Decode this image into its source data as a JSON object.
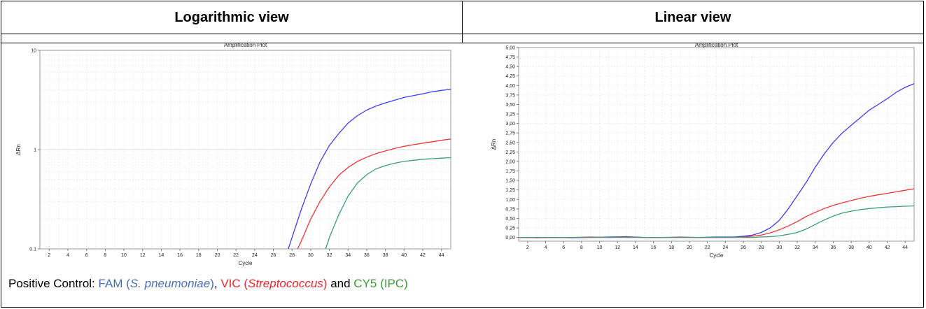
{
  "headers": {
    "left": "Logarithmic view",
    "right": "Linear view"
  },
  "caption": {
    "prefix": "Positive Control: ",
    "fam_label": "FAM (",
    "fam_organism": "S. pneumoniae",
    "fam_close": ")",
    "sep1": ", ",
    "vic_label": "VIC (",
    "vic_organism": "Streptococcus",
    "vic_close": ")",
    "sep2": " and ",
    "cy5_label": "CY5 (IPC)"
  },
  "colors": {
    "fam": "#3e3ef0",
    "vic": "#ee3434",
    "cy5": "#3c9c7a",
    "grid": "#dddddd"
  },
  "chart_data": [
    {
      "type": "line",
      "title": "Amplification Plot",
      "xlabel": "Cycle",
      "ylabel": "ΔRn",
      "yscale": "log",
      "xlim": [
        1,
        45
      ],
      "ylim": [
        0.1,
        10
      ],
      "x_ticks": [
        2,
        4,
        6,
        8,
        10,
        12,
        14,
        16,
        18,
        20,
        22,
        24,
        26,
        28,
        30,
        32,
        34,
        36,
        38,
        40,
        42,
        44
      ],
      "y_ticks": [
        0.1,
        1,
        10
      ],
      "y_tick_labels": [
        "0.1",
        "1",
        "10"
      ],
      "grid": true,
      "series": [
        {
          "color": "fam",
          "x": [
            27.6,
            28,
            29,
            30,
            31,
            32,
            33,
            34,
            35,
            36,
            37,
            38,
            39,
            40,
            41,
            42,
            43,
            44,
            45
          ],
          "y": [
            0.1,
            0.13,
            0.25,
            0.45,
            0.75,
            1.1,
            1.45,
            1.85,
            2.2,
            2.5,
            2.75,
            2.95,
            3.15,
            3.35,
            3.5,
            3.65,
            3.82,
            3.95,
            4.05
          ]
        },
        {
          "color": "vic",
          "x": [
            28.6,
            29,
            30,
            31,
            32,
            33,
            34,
            35,
            36,
            37,
            38,
            39,
            40,
            41,
            42,
            43,
            44,
            45
          ],
          "y": [
            0.1,
            0.12,
            0.2,
            0.3,
            0.42,
            0.55,
            0.66,
            0.76,
            0.84,
            0.91,
            0.97,
            1.03,
            1.08,
            1.12,
            1.16,
            1.2,
            1.24,
            1.28
          ]
        },
        {
          "color": "cy5",
          "x": [
            31.6,
            32,
            33,
            34,
            35,
            36,
            37,
            38,
            39,
            40,
            41,
            42,
            43,
            44,
            45
          ],
          "y": [
            0.1,
            0.13,
            0.22,
            0.34,
            0.46,
            0.56,
            0.64,
            0.69,
            0.73,
            0.76,
            0.78,
            0.8,
            0.81,
            0.82,
            0.83
          ]
        }
      ]
    },
    {
      "type": "line",
      "title": "Amplification Plot",
      "xlabel": "Cycle",
      "ylabel": "ΔRn",
      "yscale": "linear",
      "xlim": [
        1,
        45
      ],
      "ylim": [
        -0.1,
        5.0
      ],
      "x_ticks": [
        2,
        4,
        6,
        8,
        10,
        12,
        14,
        16,
        18,
        20,
        22,
        24,
        26,
        28,
        30,
        32,
        34,
        36,
        38,
        40,
        42,
        44
      ],
      "y_ticks": [
        0,
        0.25,
        0.5,
        0.75,
        1,
        1.25,
        1.5,
        1.75,
        2,
        2.25,
        2.5,
        2.75,
        3,
        3.25,
        3.5,
        3.75,
        4,
        4.25,
        4.5,
        4.75,
        5
      ],
      "y_tick_labels": [
        "0,00",
        "0,25",
        "0,50",
        "0,75",
        "1,00",
        "1,25",
        "1,50",
        "1,75",
        "2,00",
        "2,25",
        "2,50",
        "2,75",
        "3,00",
        "3,25",
        "3,50",
        "3,75",
        "4,00",
        "4,25",
        "4,50",
        "4,75",
        "5,00"
      ],
      "grid": true,
      "series": [
        {
          "color": "fam",
          "x": [
            1,
            3,
            5,
            7,
            9,
            11,
            13,
            15,
            17,
            19,
            21,
            23,
            25,
            26,
            27,
            28,
            29,
            30,
            31,
            32,
            33,
            34,
            35,
            36,
            37,
            38,
            39,
            40,
            41,
            42,
            43,
            44,
            45
          ],
          "y": [
            0.0,
            0.0,
            0.0,
            -0.01,
            0.0,
            0.01,
            0.02,
            0.0,
            0.0,
            0.0,
            0.0,
            0.01,
            0.01,
            0.03,
            0.06,
            0.13,
            0.25,
            0.45,
            0.75,
            1.1,
            1.45,
            1.85,
            2.2,
            2.5,
            2.75,
            2.95,
            3.15,
            3.35,
            3.5,
            3.65,
            3.82,
            3.95,
            4.05
          ]
        },
        {
          "color": "vic",
          "x": [
            1,
            3,
            5,
            7,
            9,
            11,
            13,
            15,
            17,
            19,
            21,
            23,
            25,
            26,
            27,
            28,
            29,
            30,
            31,
            32,
            33,
            34,
            35,
            36,
            37,
            38,
            39,
            40,
            41,
            42,
            43,
            44,
            45
          ],
          "y": [
            0.0,
            -0.01,
            0.0,
            0.0,
            0.01,
            0.0,
            0.01,
            0.0,
            0.0,
            0.01,
            0.0,
            0.0,
            0.0,
            0.01,
            0.03,
            0.06,
            0.12,
            0.2,
            0.3,
            0.42,
            0.55,
            0.66,
            0.76,
            0.84,
            0.91,
            0.97,
            1.03,
            1.08,
            1.12,
            1.16,
            1.2,
            1.24,
            1.28
          ]
        },
        {
          "color": "cy5",
          "x": [
            1,
            3,
            5,
            7,
            9,
            11,
            13,
            15,
            17,
            19,
            21,
            23,
            25,
            27,
            28,
            29,
            30,
            31,
            32,
            33,
            34,
            35,
            36,
            37,
            38,
            39,
            40,
            41,
            42,
            43,
            44,
            45
          ],
          "y": [
            0.0,
            0.0,
            0.0,
            0.0,
            0.0,
            0.0,
            0.0,
            0.0,
            0.0,
            0.0,
            0.0,
            0.0,
            0.0,
            0.0,
            0.01,
            0.02,
            0.04,
            0.08,
            0.13,
            0.22,
            0.34,
            0.46,
            0.56,
            0.64,
            0.69,
            0.73,
            0.76,
            0.78,
            0.8,
            0.81,
            0.82,
            0.83
          ]
        }
      ]
    }
  ]
}
